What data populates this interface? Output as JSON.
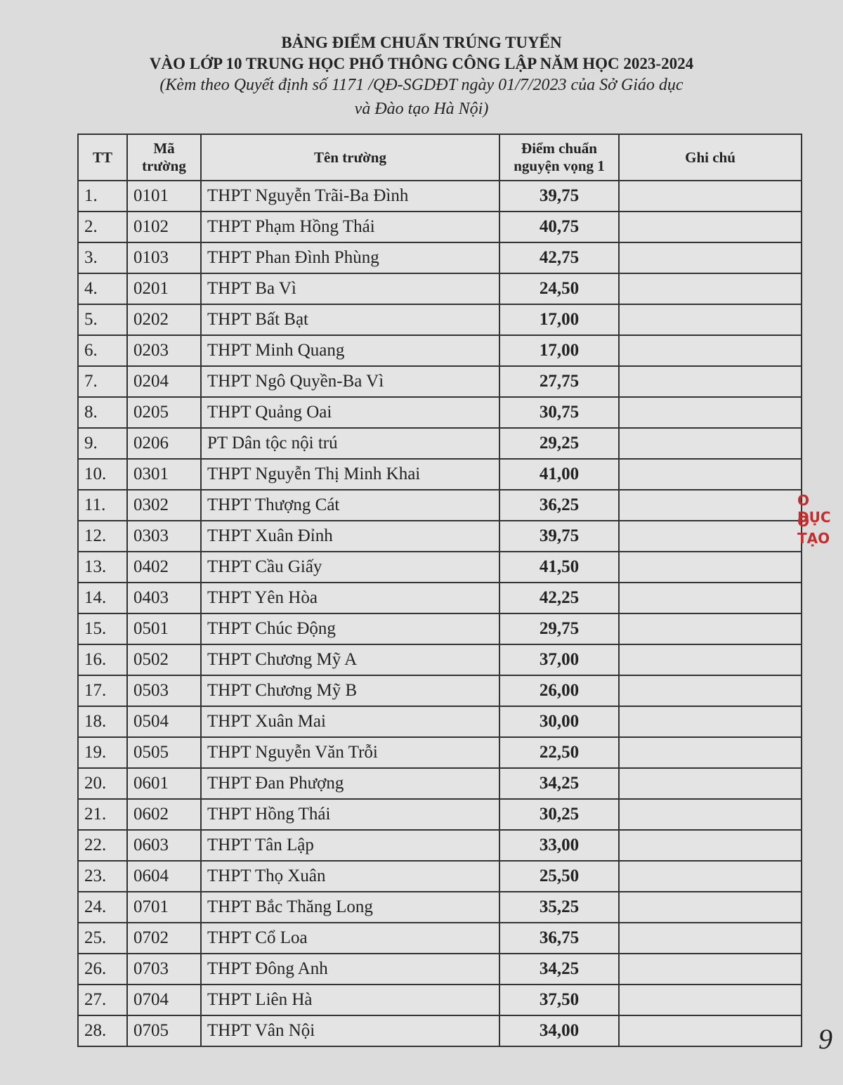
{
  "header": {
    "title_line1": "BẢNG ĐIỂM CHUẨN TRÚNG TUYỂN",
    "title_line2": "VÀO LỚP 10 TRUNG HỌC PHỔ THÔNG CÔNG LẬP NĂM HỌC 2023-2024",
    "subtitle_line1": "(Kèm theo Quyết định số 1171 /QĐ-SGDĐT ngày 01/7/2023 của Sở Giáo dục",
    "subtitle_line2": "và Đào tạo Hà Nội)"
  },
  "table": {
    "columns": [
      "TT",
      "Mã trường",
      "Tên trường",
      "Điểm chuẩn nguyện vọng 1",
      "Ghi chú"
    ],
    "rows": [
      [
        "1.",
        "0101",
        "THPT Nguyễn Trãi-Ba Đình",
        "39,75"
      ],
      [
        "2.",
        "0102",
        "THPT Phạm Hồng Thái",
        "40,75"
      ],
      [
        "3.",
        "0103",
        "THPT Phan Đình Phùng",
        "42,75"
      ],
      [
        "4.",
        "0201",
        "THPT Ba Vì",
        "24,50"
      ],
      [
        "5.",
        "0202",
        "THPT Bất Bạt",
        "17,00"
      ],
      [
        "6.",
        "0203",
        "THPT Minh Quang",
        "17,00"
      ],
      [
        "7.",
        "0204",
        "THPT Ngô Quyền-Ba Vì",
        "27,75"
      ],
      [
        "8.",
        "0205",
        "THPT Quảng Oai",
        "30,75"
      ],
      [
        "9.",
        "0206",
        "PT Dân tộc nội trú",
        "29,25"
      ],
      [
        "10.",
        "0301",
        "THPT Nguyễn Thị Minh Khai",
        "41,00"
      ],
      [
        "11.",
        "0302",
        "THPT Thượng Cát",
        "36,25"
      ],
      [
        "12.",
        "0303",
        "THPT Xuân Đỉnh",
        "39,75"
      ],
      [
        "13.",
        "0402",
        "THPT Cầu Giấy",
        "41,50"
      ],
      [
        "14.",
        "0403",
        "THPT Yên Hòa",
        "42,25"
      ],
      [
        "15.",
        "0501",
        "THPT Chúc Động",
        "29,75"
      ],
      [
        "16.",
        "0502",
        "THPT Chương Mỹ A",
        "37,00"
      ],
      [
        "17.",
        "0503",
        "THPT Chương Mỹ B",
        "26,00"
      ],
      [
        "18.",
        "0504",
        "THPT Xuân Mai",
        "30,00"
      ],
      [
        "19.",
        "0505",
        "THPT Nguyễn Văn Trỗi",
        "22,50"
      ],
      [
        "20.",
        "0601",
        "THPT Đan Phượng",
        "34,25"
      ],
      [
        "21.",
        "0602",
        "THPT Hồng Thái",
        "30,25"
      ],
      [
        "22.",
        "0603",
        "THPT Tân Lập",
        "33,00"
      ],
      [
        "23.",
        "0604",
        "THPT Thọ Xuân",
        "25,50"
      ],
      [
        "24.",
        "0701",
        "THPT Bắc Thăng Long",
        "35,25"
      ],
      [
        "25.",
        "0702",
        "THPT Cổ Loa",
        "36,75"
      ],
      [
        "26.",
        "0703",
        "THPT Đông Anh",
        "34,25"
      ],
      [
        "27.",
        "0704",
        "THPT Liên Hà",
        "37,50"
      ],
      [
        "28.",
        "0705",
        "THPT Vân Nội",
        "34,00"
      ]
    ]
  },
  "stamp": {
    "line1": "O DỤC",
    "line2": "O TẠO"
  },
  "page_mark": "9"
}
